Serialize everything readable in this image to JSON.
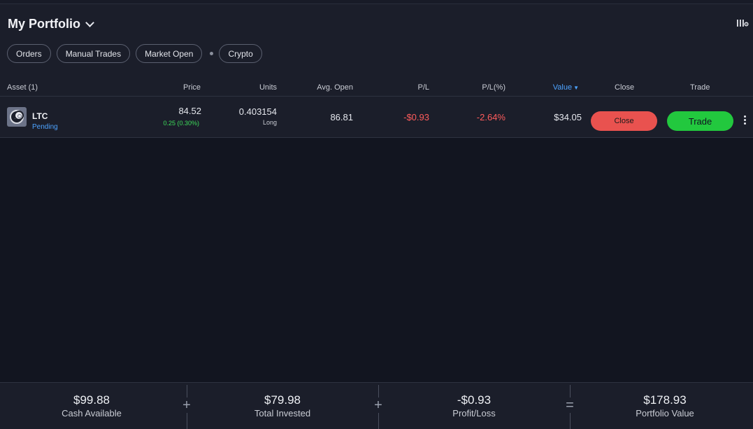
{
  "header": {
    "title": "My Portfolio"
  },
  "filters": {
    "orders": "Orders",
    "manual_trades": "Manual Trades",
    "market_open": "Market Open",
    "crypto": "Crypto"
  },
  "table": {
    "columns": {
      "asset": "Asset (1)",
      "price": "Price",
      "units": "Units",
      "avg_open": "Avg. Open",
      "pl": "P/L",
      "pl_pct": "P/L(%)",
      "value": "Value",
      "close": "Close",
      "trade": "Trade"
    },
    "sort_indicator": "▼",
    "rows": [
      {
        "ticker": "LTC",
        "status": "Pending",
        "price": "84.52",
        "price_change": "0.25 (0.30%)",
        "units": "0.403154",
        "direction": "Long",
        "avg_open": "86.81",
        "pl": "-$0.93",
        "pl_pct": "-2.64%",
        "value": "$34.05",
        "close_label": "Close",
        "trade_label": "Trade"
      }
    ]
  },
  "summary": {
    "cash_available": {
      "value": "$99.88",
      "label": "Cash Available"
    },
    "total_invested": {
      "value": "$79.98",
      "label": "Total Invested"
    },
    "profit_loss": {
      "value": "-$0.93",
      "label": "Profit/Loss"
    },
    "portfolio_value": {
      "value": "$178.93",
      "label": "Portfolio Value"
    },
    "op_plus": "+",
    "op_equals": "="
  },
  "colors": {
    "accent_blue": "#4da3ff",
    "positive_green": "#3ddc5a",
    "negative_red": "#ff5c5c",
    "close_button": "#e9524f",
    "trade_button": "#22c83e"
  },
  "icons": {
    "title_dropdown": "chevron-down-icon",
    "settings": "column-settings-icon",
    "asset": "litecoin-icon",
    "asset_badge": "crypto-badge-icon",
    "row_menu": "kebab-menu-icon"
  }
}
